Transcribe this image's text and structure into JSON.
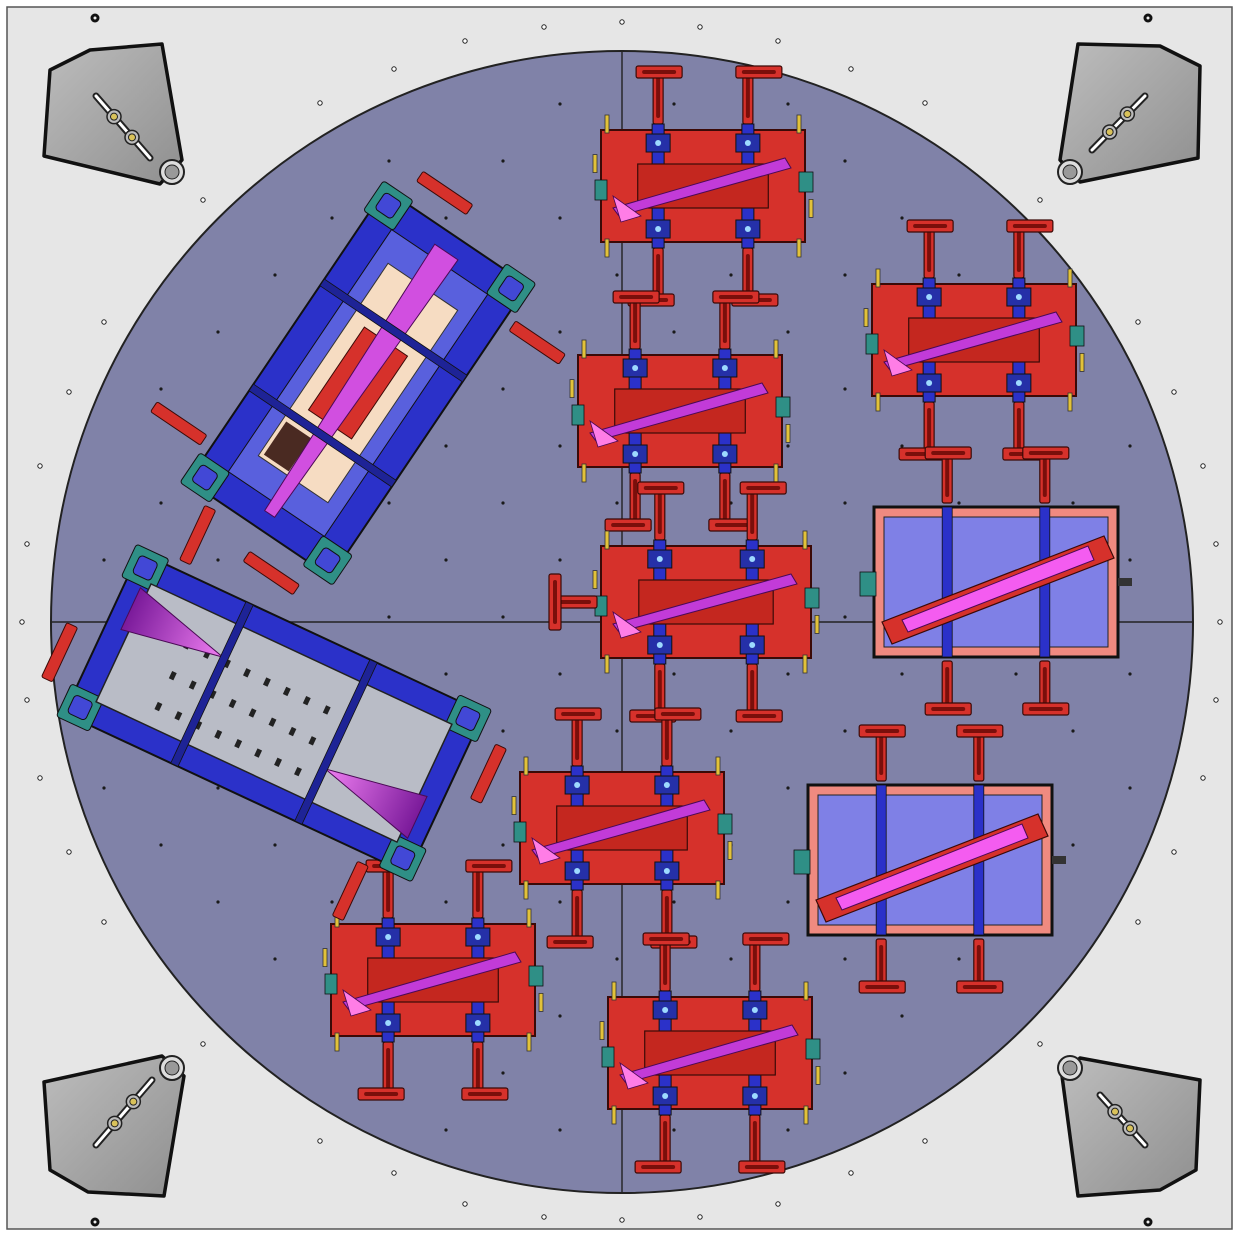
{
  "drawing": {
    "colors": {
      "plate_bg": "#e6e6e6",
      "plate_border": "#555555",
      "turntable": "#8082a8",
      "turntable_line": "#222222",
      "fixture_red": "#d6312b",
      "fixture_red_dark": "#8e1a15",
      "fixture_salmon": "#f08a80",
      "clamp_blue": "#2b31c9",
      "clamp_blue_light": "#7f80e6",
      "blade_magenta": "#c23bd8",
      "blade_violet": "#7a1a9a",
      "teal": "#2f8f86",
      "cream": "#f6dcc2",
      "steel": "#b9bcc6",
      "corner_grey": "#a9a9a9",
      "dark_brown": "#4a2a22",
      "pin_yellow": "#e2c23a"
    },
    "corner_blocks": [
      {
        "name": "top-left-locator",
        "type": "turntable-locator"
      },
      {
        "name": "top-right-locator",
        "type": "turntable-locator"
      },
      {
        "name": "bottom-left-locator",
        "type": "turntable-locator"
      },
      {
        "name": "bottom-right-locator",
        "type": "turntable-locator"
      }
    ],
    "fixture_count": {
      "red_fixtures": 7,
      "blue_frame_fixtures": 2,
      "boxed_fixtures": 2
    }
  }
}
